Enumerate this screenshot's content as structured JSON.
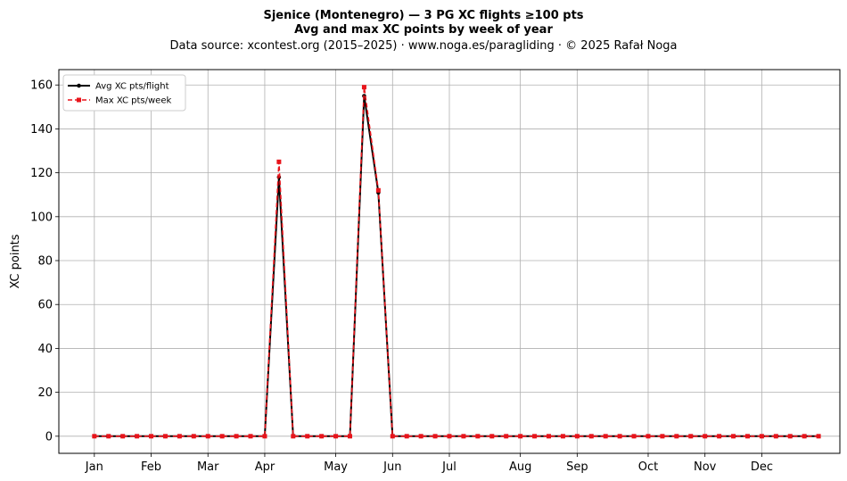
{
  "chart_data": {
    "type": "line",
    "title": "Sjenice (Montenegro)  —  3 PG XC flights ≥100 pts",
    "subtitle": "Avg and max XC points by week of year",
    "source": "Data source: xcontest.org (2015–2025)  ·  www.noga.es/paragliding  ·  © 2025 Rafał Noga",
    "xlabel": "",
    "ylabel": "XC points",
    "ylim": [
      -7.8,
      167
    ],
    "yticks": [
      0,
      20,
      40,
      60,
      80,
      100,
      120,
      140,
      160
    ],
    "xlim": [
      -1.5,
      53.5
    ],
    "x": [
      1,
      2,
      3,
      4,
      5,
      6,
      7,
      8,
      9,
      10,
      11,
      12,
      13,
      14,
      15,
      16,
      17,
      18,
      19,
      20,
      21,
      22,
      23,
      24,
      25,
      26,
      27,
      28,
      29,
      30,
      31,
      32,
      33,
      34,
      35,
      36,
      37,
      38,
      39,
      40,
      41,
      42,
      43,
      44,
      45,
      46,
      47,
      48,
      49,
      50,
      51,
      52
    ],
    "month_ticks": [
      {
        "label": "Jan",
        "week": 1
      },
      {
        "label": "Feb",
        "week": 5
      },
      {
        "label": "Mar",
        "week": 9
      },
      {
        "label": "Apr",
        "week": 13
      },
      {
        "label": "May",
        "week": 18
      },
      {
        "label": "Jun",
        "week": 22
      },
      {
        "label": "Jul",
        "week": 26
      },
      {
        "label": "Aug",
        "week": 31
      },
      {
        "label": "Sep",
        "week": 35
      },
      {
        "label": "Oct",
        "week": 40
      },
      {
        "label": "Nov",
        "week": 44
      },
      {
        "label": "Dec",
        "week": 48
      }
    ],
    "grid": true,
    "legend": "top-left",
    "series": [
      {
        "name": "Avg XC pts/flight",
        "color": "#000000",
        "style": "solid",
        "marker": "circle",
        "values": [
          0,
          0,
          0,
          0,
          0,
          0,
          0,
          0,
          0,
          0,
          0,
          0,
          0,
          118,
          0,
          0,
          0,
          0,
          0,
          155,
          111,
          0,
          0,
          0,
          0,
          0,
          0,
          0,
          0,
          0,
          0,
          0,
          0,
          0,
          0,
          0,
          0,
          0,
          0,
          0,
          0,
          0,
          0,
          0,
          0,
          0,
          0,
          0,
          0,
          0,
          0,
          0
        ]
      },
      {
        "name": "Max XC pts/week",
        "color": "#e8141b",
        "style": "dashed",
        "marker": "square",
        "values": [
          0,
          0,
          0,
          0,
          0,
          0,
          0,
          0,
          0,
          0,
          0,
          0,
          0,
          125,
          0,
          0,
          0,
          0,
          0,
          159,
          112,
          0,
          0,
          0,
          0,
          0,
          0,
          0,
          0,
          0,
          0,
          0,
          0,
          0,
          0,
          0,
          0,
          0,
          0,
          0,
          0,
          0,
          0,
          0,
          0,
          0,
          0,
          0,
          0,
          0,
          0,
          0
        ]
      }
    ]
  }
}
